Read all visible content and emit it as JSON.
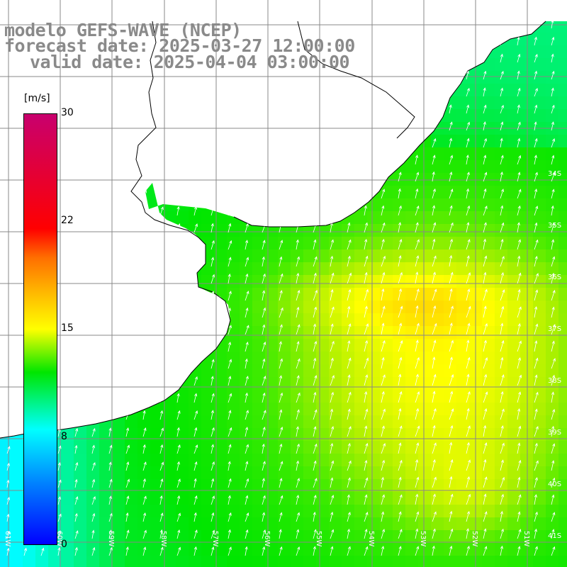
{
  "header": {
    "line1": "modelo GEFS-WAVE (NCEP)",
    "line2": "forecast date: 2025-03-27 12:00:00",
    "line3": "valid date: 2025-04-04 03:00:00"
  },
  "colorbar": {
    "unit": "[m/s]",
    "ticks": [
      {
        "label": "30",
        "value": 30
      },
      {
        "label": "22",
        "value": 22
      },
      {
        "label": "15",
        "value": 15
      },
      {
        "label": "8",
        "value": 8
      },
      {
        "label": "0",
        "value": 0
      }
    ],
    "colors": [
      "#0000ff",
      "#0080ff",
      "#00ffff",
      "#00e600",
      "#ffff00",
      "#ff6e00",
      "#ff0000",
      "#c8006e"
    ]
  },
  "grid": {
    "lat_labels": [
      "34S",
      "35S",
      "36S",
      "37S",
      "38S",
      "39S",
      "40S",
      "41S"
    ],
    "lon_labels": [
      "61W",
      "60W",
      "59W",
      "58W",
      "57W",
      "56W",
      "55W",
      "54W",
      "53W",
      "52W",
      "51W"
    ]
  },
  "map": {
    "variable": "wind speed",
    "land_color": "#ffffff",
    "grid_color": "#888888",
    "coast_color": "#000000",
    "arrow_color": "#ffffff"
  }
}
